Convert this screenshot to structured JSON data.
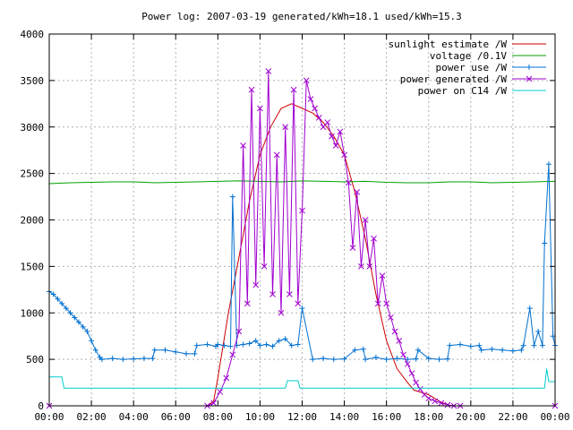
{
  "chart_data": {
    "type": "line",
    "title": "Power log: 2007-03-19 generated/kWh=18.1 used/kWh=15.3",
    "xlabel": "",
    "ylabel": "",
    "x_range_hours": [
      0,
      24
    ],
    "ylim": [
      0,
      4000
    ],
    "x_tick_labels": [
      "00:00",
      "02:00",
      "04:00",
      "06:00",
      "08:00",
      "10:00",
      "12:00",
      "14:00",
      "16:00",
      "18:00",
      "20:00",
      "22:00",
      "00:00"
    ],
    "y_ticks": [
      0,
      500,
      1000,
      1500,
      2000,
      2500,
      3000,
      3500,
      4000
    ],
    "grid": true,
    "legend_position": "top-right",
    "series": [
      {
        "name": "sunlight estimate /W",
        "color": "#cc0000",
        "style": "line",
        "x": [
          0,
          6,
          7.5,
          7.8,
          8.0,
          8.5,
          9.0,
          9.5,
          10.0,
          10.5,
          11.0,
          11.5,
          12.0,
          12.5,
          13.0,
          13.5,
          14.0,
          14.5,
          15.0,
          15.5,
          16.0,
          16.5,
          17.0,
          17.3,
          18.0,
          18.5,
          19.0,
          19.5,
          24
        ],
        "values": [
          0,
          0,
          0,
          50,
          300,
          1000,
          1600,
          2200,
          2700,
          3000,
          3200,
          3250,
          3200,
          3150,
          3050,
          2900,
          2700,
          2300,
          1800,
          1200,
          700,
          400,
          250,
          170,
          120,
          50,
          0,
          0,
          0
        ]
      },
      {
        "name": "voltage /0.1V",
        "color": "#00a000",
        "style": "line",
        "x": [
          0,
          1,
          2,
          3,
          4,
          5,
          6,
          7,
          8,
          9,
          10,
          11,
          12,
          13,
          14,
          15,
          16,
          17,
          18,
          19,
          20,
          21,
          22,
          23,
          24
        ],
        "values": [
          2390,
          2400,
          2405,
          2410,
          2410,
          2400,
          2405,
          2410,
          2415,
          2420,
          2415,
          2410,
          2420,
          2415,
          2410,
          2415,
          2405,
          2400,
          2400,
          2410,
          2410,
          2400,
          2405,
          2410,
          2415
        ]
      },
      {
        "name": "power use /W",
        "color": "#0070d0",
        "style": "linespoints",
        "x": [
          0,
          0.2,
          0.4,
          0.6,
          0.8,
          1.0,
          1.2,
          1.4,
          1.6,
          1.8,
          2.0,
          2.2,
          2.4,
          2.5,
          3,
          3.5,
          4,
          4.5,
          4.9,
          5.0,
          5.5,
          6,
          6.5,
          6.9,
          7.0,
          7.5,
          7.9,
          8.0,
          8.3,
          8.6,
          8.7,
          8.9,
          9.2,
          9.5,
          9.8,
          10.0,
          10.3,
          10.6,
          10.9,
          11.2,
          11.5,
          11.8,
          12.0,
          12.5,
          13.0,
          13.5,
          14.0,
          14.5,
          14.9,
          15.0,
          15.5,
          16.0,
          16.5,
          17.0,
          17.4,
          17.5,
          18.0,
          18.5,
          18.9,
          19.0,
          19.5,
          20.0,
          20.4,
          20.5,
          21,
          21.5,
          22,
          22.4,
          22.5,
          22.8,
          23.0,
          23.2,
          23.4,
          23.5,
          23.7,
          23.9,
          24
        ],
        "values": [
          1230,
          1200,
          1150,
          1100,
          1050,
          1000,
          950,
          900,
          850,
          800,
          700,
          600,
          520,
          500,
          510,
          500,
          505,
          510,
          510,
          600,
          600,
          580,
          560,
          560,
          650,
          660,
          640,
          660,
          650,
          640,
          2250,
          650,
          660,
          670,
          700,
          650,
          660,
          640,
          700,
          720,
          650,
          660,
          1050,
          500,
          510,
          500,
          505,
          600,
          610,
          500,
          520,
          500,
          510,
          500,
          505,
          600,
          510,
          500,
          505,
          650,
          660,
          640,
          650,
          600,
          610,
          600,
          590,
          600,
          650,
          1050,
          650,
          800,
          650,
          1750,
          2600,
          750,
          650
        ]
      },
      {
        "name": "power generated /W",
        "color": "#a000d0",
        "style": "linespoints",
        "x": [
          0,
          7.5,
          7.8,
          8.1,
          8.4,
          8.7,
          9.0,
          9.2,
          9.4,
          9.6,
          9.8,
          10.0,
          10.2,
          10.4,
          10.6,
          10.8,
          11.0,
          11.2,
          11.4,
          11.6,
          11.8,
          12.0,
          12.2,
          12.4,
          12.6,
          12.8,
          13.0,
          13.2,
          13.4,
          13.6,
          13.8,
          14.0,
          14.2,
          14.4,
          14.6,
          14.8,
          15.0,
          15.2,
          15.4,
          15.6,
          15.8,
          16.0,
          16.2,
          16.4,
          16.6,
          16.8,
          17.0,
          17.2,
          17.4,
          17.6,
          17.8,
          18.0,
          18.3,
          18.6,
          18.9,
          19.2,
          19.5,
          24
        ],
        "values": [
          0,
          0,
          30,
          150,
          300,
          550,
          800,
          2800,
          1100,
          3400,
          1300,
          3200,
          1500,
          3600,
          1200,
          2700,
          1000,
          3000,
          1200,
          3400,
          1100,
          2100,
          3500,
          3300,
          3200,
          3100,
          3000,
          3050,
          2900,
          2800,
          2950,
          2700,
          2400,
          1700,
          2300,
          1500,
          2000,
          1500,
          1800,
          1100,
          1400,
          1100,
          950,
          800,
          700,
          550,
          450,
          350,
          250,
          180,
          120,
          80,
          50,
          30,
          10,
          0,
          0,
          0
        ]
      },
      {
        "name": "power on C14 /W",
        "color": "#00cccc",
        "style": "line",
        "x": [
          0,
          0.1,
          0.6,
          0.7,
          11.2,
          11.3,
          11.8,
          11.9,
          23.5,
          23.6,
          23.7,
          24
        ],
        "values": [
          310,
          310,
          310,
          190,
          190,
          270,
          270,
          190,
          190,
          400,
          260,
          260
        ]
      }
    ]
  }
}
